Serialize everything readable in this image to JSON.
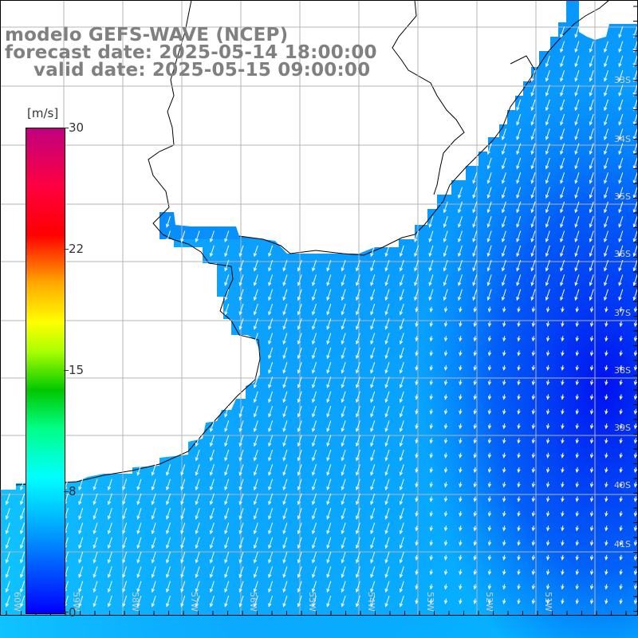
{
  "titles": {
    "line1": "modelo GEFS-WAVE (NCEP)",
    "line2": "forecast date: 2025-05-14 18:00:00",
    "line3": "valid date: 2025-05-15 09:00:00"
  },
  "colorbar": {
    "unit": "[m/s]",
    "min": 0,
    "max": 30,
    "ticks": [
      "30",
      "22",
      "15",
      "8",
      "0"
    ],
    "tick_values": [
      30,
      22,
      15,
      8,
      0
    ]
  },
  "lat_labels": [
    "33S",
    "34S",
    "35S",
    "36S",
    "37S",
    "38S",
    "39S",
    "40S",
    "41S"
  ],
  "lon_labels": [
    "60W",
    "59W",
    "58W",
    "57W",
    "56W",
    "55W",
    "54W",
    "53W",
    "52W",
    "51W"
  ],
  "colors": {
    "land": "#ffffff",
    "sea_low": "#00b4ff",
    "sea_mid": "#0a78f0",
    "sea_high": "#0014f0",
    "grid": "#b4b4b4",
    "arrow": "#ffffff"
  }
}
